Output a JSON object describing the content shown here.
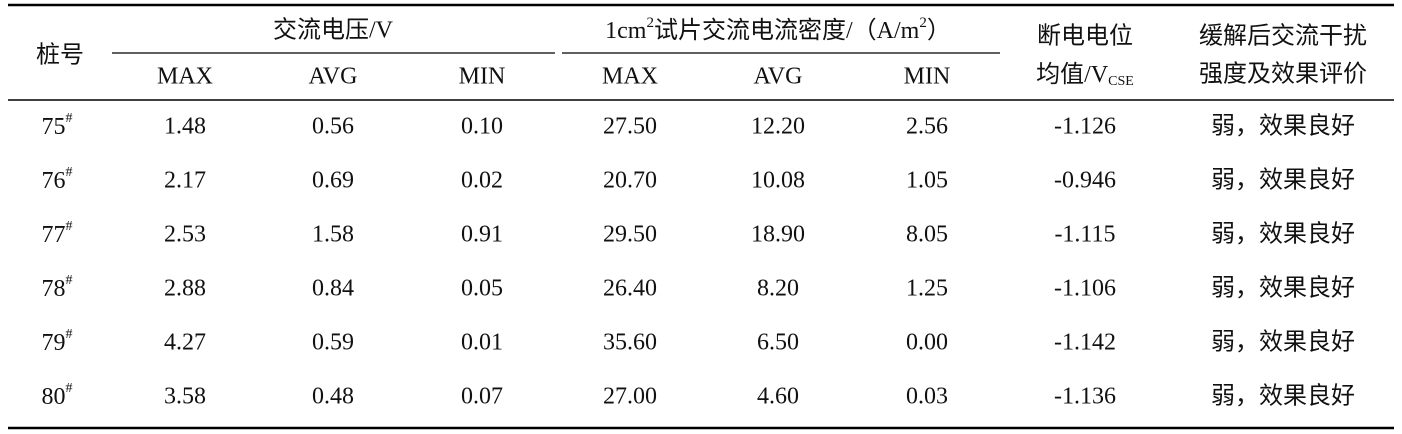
{
  "table": {
    "header": {
      "pile": "桩号",
      "voltage": "交流电压/V",
      "current": {
        "pre": "1cm",
        "sup1": "2",
        "mid": "试片交流电流密度/（A/m",
        "sup2": "2",
        "post": "）"
      },
      "potential": {
        "line1": "断电电位",
        "line2": "均值/V",
        "sub": "CSE"
      },
      "evaluation": {
        "line1": "缓解后交流干扰",
        "line2": "强度及效果评价"
      },
      "sub_columns": [
        "MAX",
        "AVG",
        "MIN",
        "MAX",
        "AVG",
        "MIN"
      ]
    },
    "rows": [
      {
        "pile": [
          "75",
          "#"
        ],
        "cells": [
          "1.48",
          "0.56",
          "0.10",
          "27.50",
          "12.20",
          "2.56",
          "-1.126",
          "弱，效果良好"
        ]
      },
      {
        "pile": [
          "76",
          "#"
        ],
        "cells": [
          "2.17",
          "0.69",
          "0.02",
          "20.70",
          "10.08",
          "1.05",
          "-0.946",
          "弱，效果良好"
        ]
      },
      {
        "pile": [
          "77",
          "#"
        ],
        "cells": [
          "2.53",
          "1.58",
          "0.91",
          "29.50",
          "18.90",
          "8.05",
          "-1.115",
          "弱，效果良好"
        ]
      },
      {
        "pile": [
          "78",
          "#"
        ],
        "cells": [
          "2.88",
          "0.84",
          "0.05",
          "26.40",
          "8.20",
          "1.25",
          "-1.106",
          "弱，效果良好"
        ]
      },
      {
        "pile": [
          "79",
          "#"
        ],
        "cells": [
          "4.27",
          "0.59",
          "0.01",
          "35.60",
          "6.50",
          "0.00",
          "-1.142",
          "弱，效果良好"
        ]
      },
      {
        "pile": [
          "80",
          "#"
        ],
        "cells": [
          "3.58",
          "0.48",
          "0.07",
          "27.00",
          "4.60",
          "0.03",
          "-1.136",
          "弱，效果良好"
        ]
      }
    ]
  }
}
